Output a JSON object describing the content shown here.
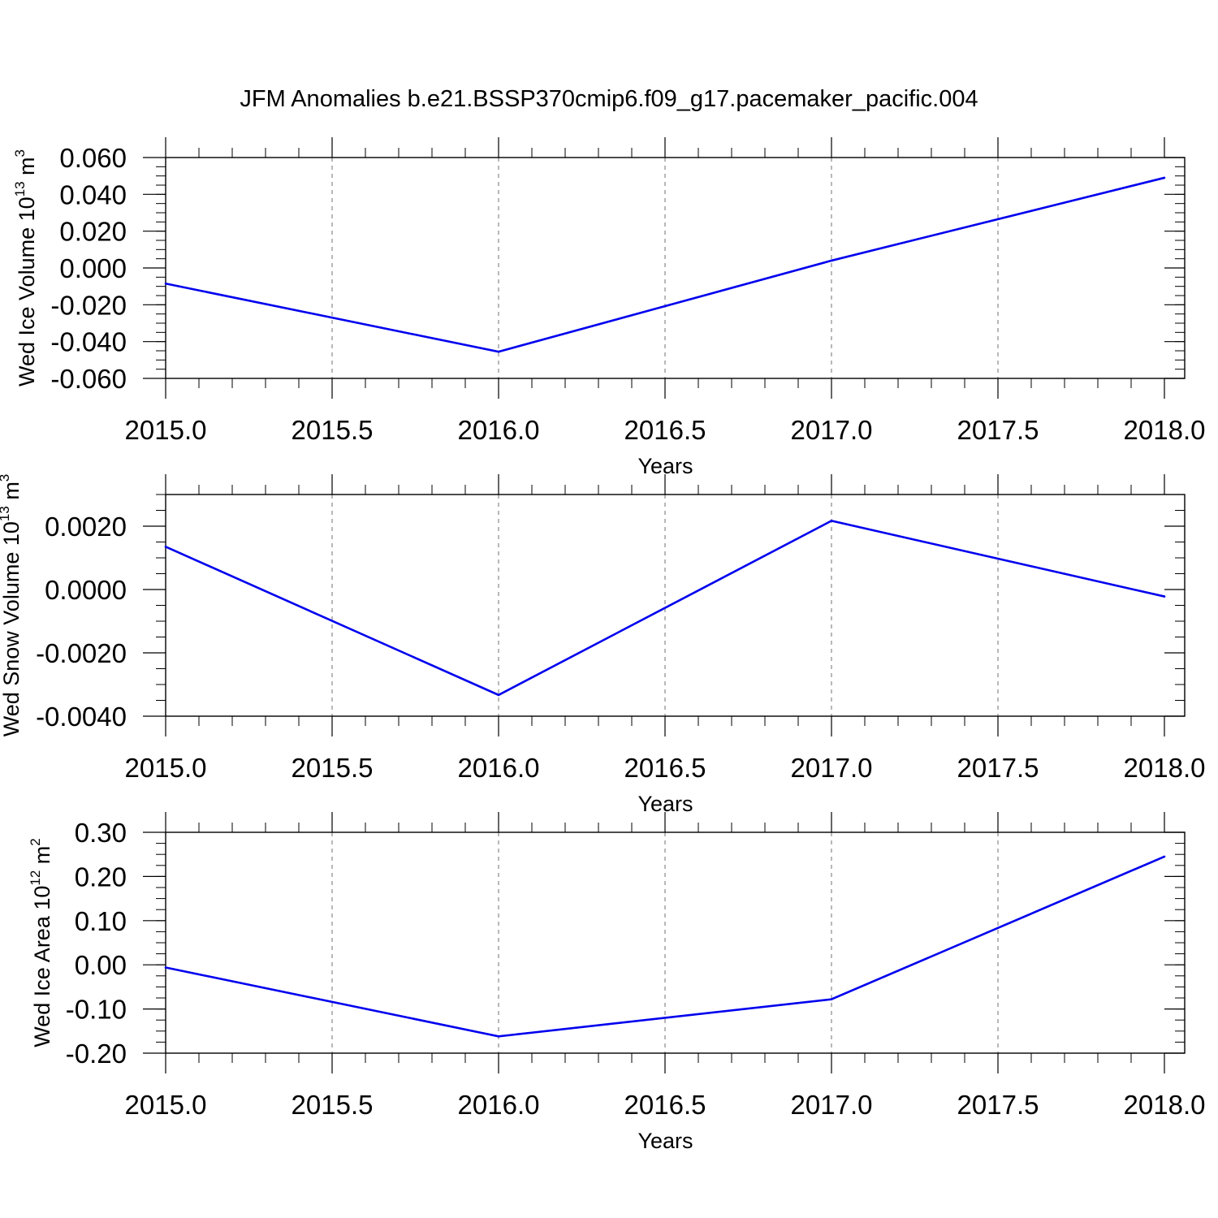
{
  "title": "JFM Anomalies b.e21.BSSP370cmip6.f09_g17.pacemaker_pacific.004",
  "chart_data": [
    {
      "type": "line",
      "xlabel": "Years",
      "ylabel": {
        "text": "Wed Ice Volume 10",
        "exp": "13",
        "unit": " m",
        "unit_exp": "3"
      },
      "x_ticks": [
        "2015.0",
        "2015.5",
        "2016.0",
        "2016.5",
        "2017.0",
        "2017.5",
        "2018.0"
      ],
      "xlim": [
        2015,
        2018.06
      ],
      "y_ticks": [
        -0.06,
        -0.04,
        -0.02,
        0.0,
        0.02,
        0.04,
        0.06
      ],
      "y_tick_labels": [
        "-0.060",
        "-0.040",
        "-0.020",
        "0.000",
        "0.020",
        "0.040",
        "0.060"
      ],
      "ylim": [
        -0.06,
        0.06
      ],
      "y_minor_step": 0.005,
      "grid": "dashed vertical at major x ticks",
      "series": [
        {
          "color": "#0000ee",
          "x": [
            2015,
            2016,
            2017,
            2018
          ],
          "y": [
            -0.0085,
            -0.0455,
            0.004,
            0.049
          ]
        }
      ]
    },
    {
      "type": "line",
      "xlabel": "Years",
      "ylabel": {
        "text": "Wed Snow Volume 10",
        "exp": "13",
        "unit": " m",
        "unit_exp": "3"
      },
      "x_ticks": [
        "2015.0",
        "2015.5",
        "2016.0",
        "2016.5",
        "2017.0",
        "2017.5",
        "2018.0"
      ],
      "xlim": [
        2015,
        2018.06
      ],
      "y_ticks": [
        -0.004,
        -0.002,
        0.0,
        0.002
      ],
      "y_tick_labels": [
        "-0.0040",
        "-0.0020",
        "0.0000",
        "0.0020"
      ],
      "ylim": [
        -0.004,
        0.003
      ],
      "y_minor_step": 0.0005,
      "grid": "dashed vertical at major x ticks",
      "series": [
        {
          "color": "#0000ee",
          "x": [
            2015,
            2016,
            2017,
            2018
          ],
          "y": [
            0.00135,
            -0.00333,
            0.00217,
            -0.00022
          ]
        }
      ]
    },
    {
      "type": "line",
      "xlabel": "Years",
      "ylabel": {
        "text": "Wed Ice Area 10",
        "exp": "12",
        "unit": " m",
        "unit_exp": "2"
      },
      "x_ticks": [
        "2015.0",
        "2015.5",
        "2016.0",
        "2016.5",
        "2017.0",
        "2017.5",
        "2018.0"
      ],
      "xlim": [
        2015,
        2018.06
      ],
      "y_ticks": [
        -0.2,
        -0.1,
        0.0,
        0.1,
        0.2,
        0.3
      ],
      "y_tick_labels": [
        "-0.20",
        "-0.10",
        "0.00",
        "0.10",
        "0.20",
        "0.30"
      ],
      "ylim": [
        -0.2,
        0.3
      ],
      "y_minor_step": 0.025,
      "grid": "dashed vertical at major x ticks",
      "series": [
        {
          "color": "#0000ee",
          "x": [
            2015,
            2016,
            2017,
            2018
          ],
          "y": [
            -0.006,
            -0.162,
            -0.078,
            0.245
          ]
        }
      ]
    }
  ]
}
